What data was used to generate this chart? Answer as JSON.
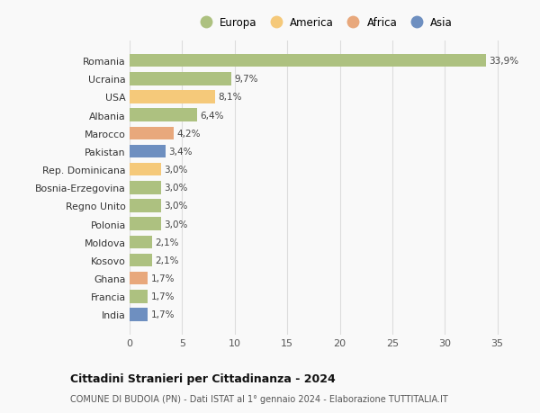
{
  "countries": [
    "Romania",
    "Ucraina",
    "USA",
    "Albania",
    "Marocco",
    "Pakistan",
    "Rep. Dominicana",
    "Bosnia-Erzegovina",
    "Regno Unito",
    "Polonia",
    "Moldova",
    "Kosovo",
    "Ghana",
    "Francia",
    "India"
  ],
  "values": [
    33.9,
    9.7,
    8.1,
    6.4,
    4.2,
    3.4,
    3.0,
    3.0,
    3.0,
    3.0,
    2.1,
    2.1,
    1.7,
    1.7,
    1.7
  ],
  "labels": [
    "33,9%",
    "9,7%",
    "8,1%",
    "6,4%",
    "4,2%",
    "3,4%",
    "3,0%",
    "3,0%",
    "3,0%",
    "3,0%",
    "2,1%",
    "2,1%",
    "1,7%",
    "1,7%",
    "1,7%"
  ],
  "continents": [
    "Europa",
    "Europa",
    "America",
    "Europa",
    "Africa",
    "Asia",
    "America",
    "Europa",
    "Europa",
    "Europa",
    "Europa",
    "Europa",
    "Africa",
    "Europa",
    "Asia"
  ],
  "colors": {
    "Europa": "#adc180",
    "America": "#f5c97a",
    "Africa": "#e8a87c",
    "Asia": "#6e8fc0"
  },
  "title": "Cittadini Stranieri per Cittadinanza - 2024",
  "subtitle": "COMUNE DI BUDOIA (PN) - Dati ISTAT al 1° gennaio 2024 - Elaborazione TUTTITALIA.IT",
  "xlim": [
    0,
    37
  ],
  "xticks": [
    0,
    5,
    10,
    15,
    20,
    25,
    30,
    35
  ],
  "background_color": "#f9f9f9",
  "grid_color": "#dddddd",
  "bar_height": 0.72,
  "legend_order": [
    "Europa",
    "America",
    "Africa",
    "Asia"
  ]
}
